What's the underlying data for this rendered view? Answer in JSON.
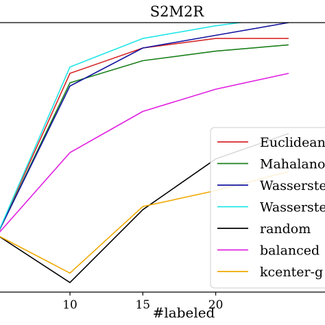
{
  "chart_data": {
    "type": "line",
    "title": "S2M2R",
    "xlabel": "#labeled",
    "ylabel": "",
    "xlim": [
      5.2,
      27.5
    ],
    "ylim": [
      0.31,
      0.735
    ],
    "x_ticks": [
      10,
      15,
      20
    ],
    "x": [
      5,
      10,
      15,
      20,
      25
    ],
    "grid": false,
    "legend_position": "right",
    "series": [
      {
        "name": "Euclidean",
        "color": "#d62728",
        "values": [
          0.4,
          0.655,
          0.695,
          0.71,
          0.71
        ]
      },
      {
        "name": "Mahalanobis",
        "color": "#1a7f1a",
        "values": [
          0.4,
          0.64,
          0.675,
          0.69,
          0.7
        ]
      },
      {
        "name": "Wasserstein",
        "color": "#1414a0",
        "values": [
          0.4,
          0.635,
          0.695,
          0.715,
          0.735
        ]
      },
      {
        "name": "Wasserstein",
        "color": "#22e5e5",
        "values": [
          0.4,
          0.665,
          0.71,
          0.73,
          0.745
        ]
      },
      {
        "name": "random",
        "color": "#000000",
        "values": [
          0.4,
          0.325,
          0.44,
          0.52,
          0.56
        ]
      },
      {
        "name": "balanced",
        "color": "#e020e0",
        "values": [
          0.4,
          0.53,
          0.595,
          0.63,
          0.655
        ]
      },
      {
        "name": "kcenter-g",
        "color": "#f0a800",
        "values": [
          0.4,
          0.34,
          0.445,
          0.47,
          0.5
        ]
      }
    ]
  }
}
